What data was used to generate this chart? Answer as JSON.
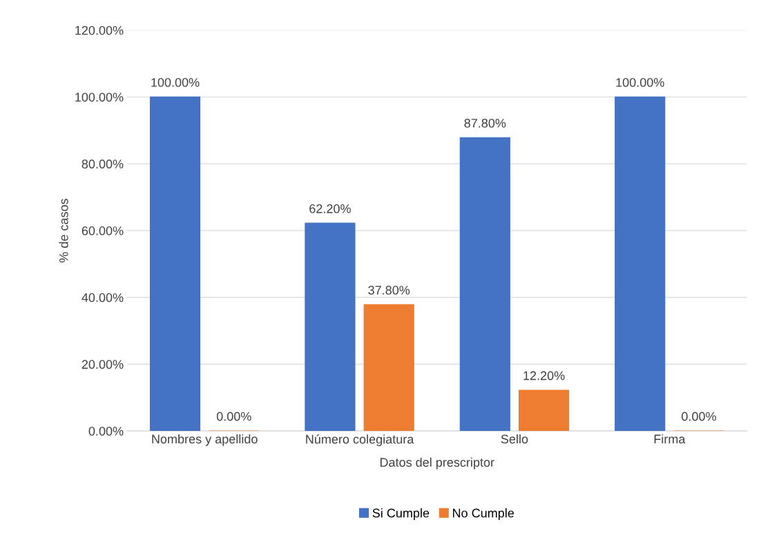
{
  "chart_data": {
    "type": "bar",
    "xlabel": "Datos del prescriptor",
    "ylabel": "% de casos",
    "categories": [
      "Nombres y apellido",
      "Número colegiatura",
      "Sello",
      "Firma"
    ],
    "series": [
      {
        "name": "Si Cumple",
        "color": "#4472c4",
        "values": [
          100,
          62.2,
          87.8,
          100
        ],
        "value_labels": [
          "100.00%",
          "62.20%",
          "87.80%",
          "100.00%"
        ]
      },
      {
        "name": "No Cumple",
        "color": "#ed7d31",
        "values": [
          0,
          37.8,
          12.2,
          0
        ],
        "value_labels": [
          "0.00%",
          "37.80%",
          "12.20%",
          "0.00%"
        ]
      }
    ],
    "ylim": [
      0,
      120
    ],
    "yticks": [
      {
        "value": 0,
        "label": "0.00%"
      },
      {
        "value": 20,
        "label": "20.00%"
      },
      {
        "value": 40,
        "label": "40.00%"
      },
      {
        "value": 60,
        "label": "60.00%"
      },
      {
        "value": 80,
        "label": "80.00%"
      },
      {
        "value": 100,
        "label": "100.00%"
      },
      {
        "value": 120,
        "label": "120.00%"
      }
    ],
    "grid": "y",
    "legend": "bottom"
  }
}
